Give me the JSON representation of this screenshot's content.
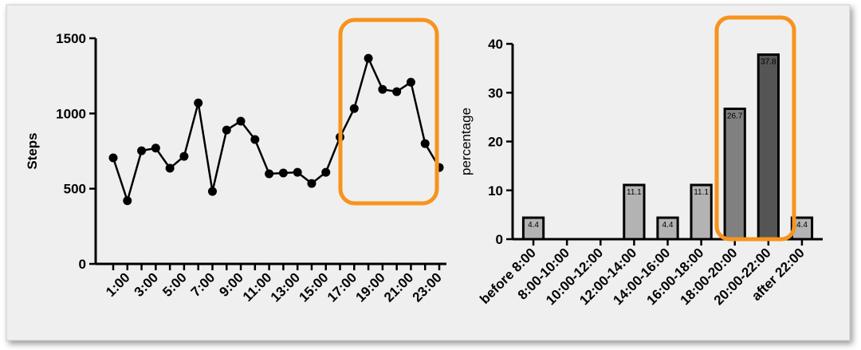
{
  "chart_data": [
    {
      "type": "line",
      "y_label": "Steps",
      "categories": [
        null,
        "1:00",
        null,
        "3:00",
        null,
        "5:00",
        null,
        "7:00",
        null,
        "9:00",
        null,
        "11:00",
        null,
        "13:00",
        null,
        "15:00",
        null,
        "17:00",
        null,
        "19:00",
        null,
        "21:00",
        null,
        "23:00"
      ],
      "values": [
        705,
        420,
        752,
        770,
        636,
        715,
        1070,
        482,
        890,
        949,
        827,
        599,
        604,
        609,
        535,
        609,
        843,
        1033,
        1367,
        1160,
        1145,
        1208,
        800,
        641
      ],
      "color": "#000000",
      "ylim": [
        0,
        1500
      ],
      "yticks": [
        0,
        500,
        1000,
        1500
      ]
    },
    {
      "type": "bar",
      "y_label": "percentage",
      "categories": [
        "before 8:00",
        "8:00-10:00",
        "10:00-12:00",
        "12:00-14:00",
        "14:00-16:00",
        "16:00-18:00",
        "18:00-20:00",
        "20:00-22:00",
        "after 22:00"
      ],
      "values": [
        4.4,
        0,
        0,
        11.1,
        4.4,
        11.1,
        26.7,
        37.8,
        4.4
      ],
      "value_labels": [
        "4.4",
        null,
        null,
        "11.1",
        "4.4",
        "11.1",
        "26.7",
        "37.8",
        "4.4"
      ],
      "colors": [
        "#b3b3b3",
        "#b3b3b3",
        "#b3b3b3",
        "#b3b3b3",
        "#b3b3b3",
        "#b3b3b3",
        "#808080",
        "#555555",
        "#b3b3b3"
      ],
      "ylim": [
        0,
        40
      ],
      "yticks": [
        0,
        10,
        20,
        30,
        40
      ]
    }
  ]
}
